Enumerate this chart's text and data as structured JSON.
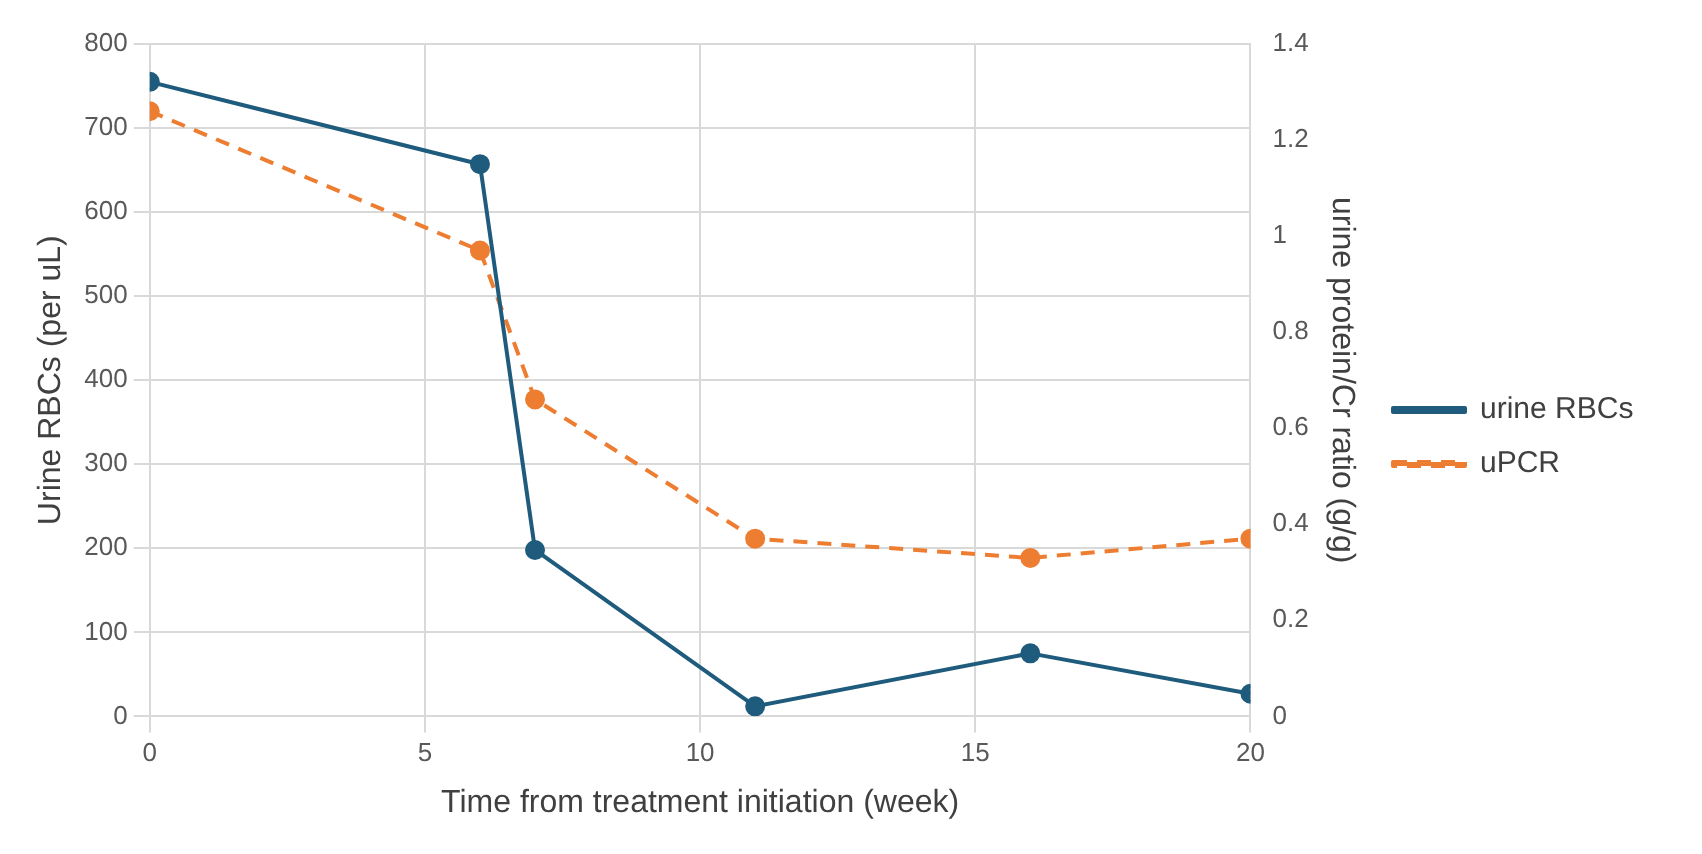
{
  "chart_data": {
    "type": "line",
    "xlabel": "Time from treatment initiation (week)",
    "ylabel": "Urine RBCs (per uL)",
    "y2label": "urine protein/Cr ratio (g/g)",
    "x": [
      0,
      6,
      7,
      11,
      16,
      20
    ],
    "series": [
      {
        "name": "urine RBCs",
        "color": "#1f5b7c",
        "values": [
          755,
          657,
          198,
          12,
          75,
          27
        ],
        "line_style": "solid"
      },
      {
        "name": "uPCR",
        "color": "#ed7d31",
        "values": [
          1.26,
          0.97,
          0.66,
          0.37,
          0.33,
          0.37
        ],
        "axis": "y2",
        "line_style": "dashed"
      }
    ],
    "xlim": [
      0,
      20
    ],
    "xticks": [
      0,
      5,
      10,
      15,
      20
    ],
    "ylim": [
      0,
      800
    ],
    "yticks": [
      0,
      100,
      200,
      300,
      400,
      500,
      600,
      700,
      800
    ],
    "y2lim": [
      0,
      1.4
    ],
    "y2ticks": [
      0,
      0.2,
      0.4,
      0.6,
      0.8,
      1,
      1.2,
      1.4
    ],
    "grid": true,
    "legend": "right",
    "marker": "circle"
  }
}
